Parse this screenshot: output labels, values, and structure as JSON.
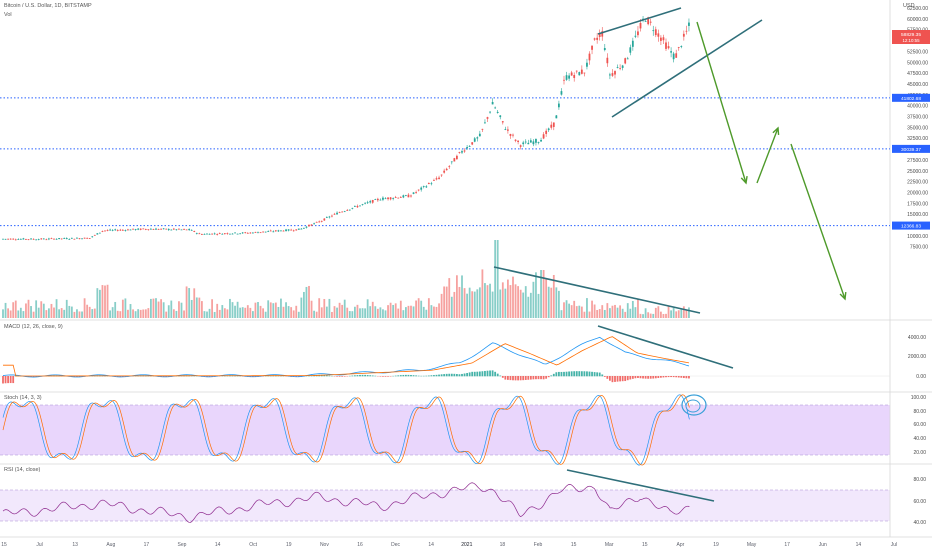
{
  "header": {
    "symbol_title": "Bitcoin / U.S. Dollar, 1D, BITSTAMP",
    "volume_label": "Vol",
    "currency_label": "USD"
  },
  "price_axis": {
    "ticks": [
      "62500.00",
      "60000.00",
      "57500.00",
      "55000.00",
      "52500.00",
      "50000.00",
      "47500.00",
      "45000.00",
      "42500.00",
      "40000.00",
      "37500.00",
      "35000.00",
      "32500.00",
      "30000.00",
      "27500.00",
      "25000.00",
      "22500.00",
      "20000.00",
      "17500.00",
      "15000.00",
      "12500.00",
      "10000.00",
      "7500.00"
    ],
    "last_price_label": "58829.35",
    "countdown_label": "12:10:55",
    "level_labels": [
      "41802.68",
      "30039.37",
      "12366.83"
    ]
  },
  "indicators": {
    "macd": {
      "label": "MACD (12, 26, close, 9)",
      "ticks": [
        "4000.00",
        "2000.00",
        "0.00"
      ]
    },
    "stoch": {
      "label": "Stoch (14, 3, 3)",
      "ticks": [
        "100.00",
        "80.00",
        "60.00",
        "40.00",
        "20.00"
      ]
    },
    "rsi": {
      "label": "RSI (14, close)",
      "ticks": [
        "80.00",
        "60.00",
        "40.00"
      ]
    }
  },
  "time_axis": {
    "labels": [
      "15",
      "Jul",
      "13",
      "Aug",
      "17",
      "Sep",
      "14",
      "Oct",
      "19",
      "Nov",
      "16",
      "Dec",
      "14",
      "2021",
      "18",
      "Feb",
      "15",
      "Mar",
      "15",
      "Apr",
      "19",
      "May",
      "17",
      "Jun",
      "14",
      "Jul"
    ]
  },
  "colors": {
    "up": "#26a69a",
    "down": "#ef5350",
    "trendline": "#2f6f7a",
    "projection": "#4e9a2a",
    "level": "#2962ff",
    "stoch_band": "#e1c8fb",
    "rsi_band": "#f1e6fc",
    "macd_line": "#2196f3",
    "signal_line": "#ff6d00"
  }
}
